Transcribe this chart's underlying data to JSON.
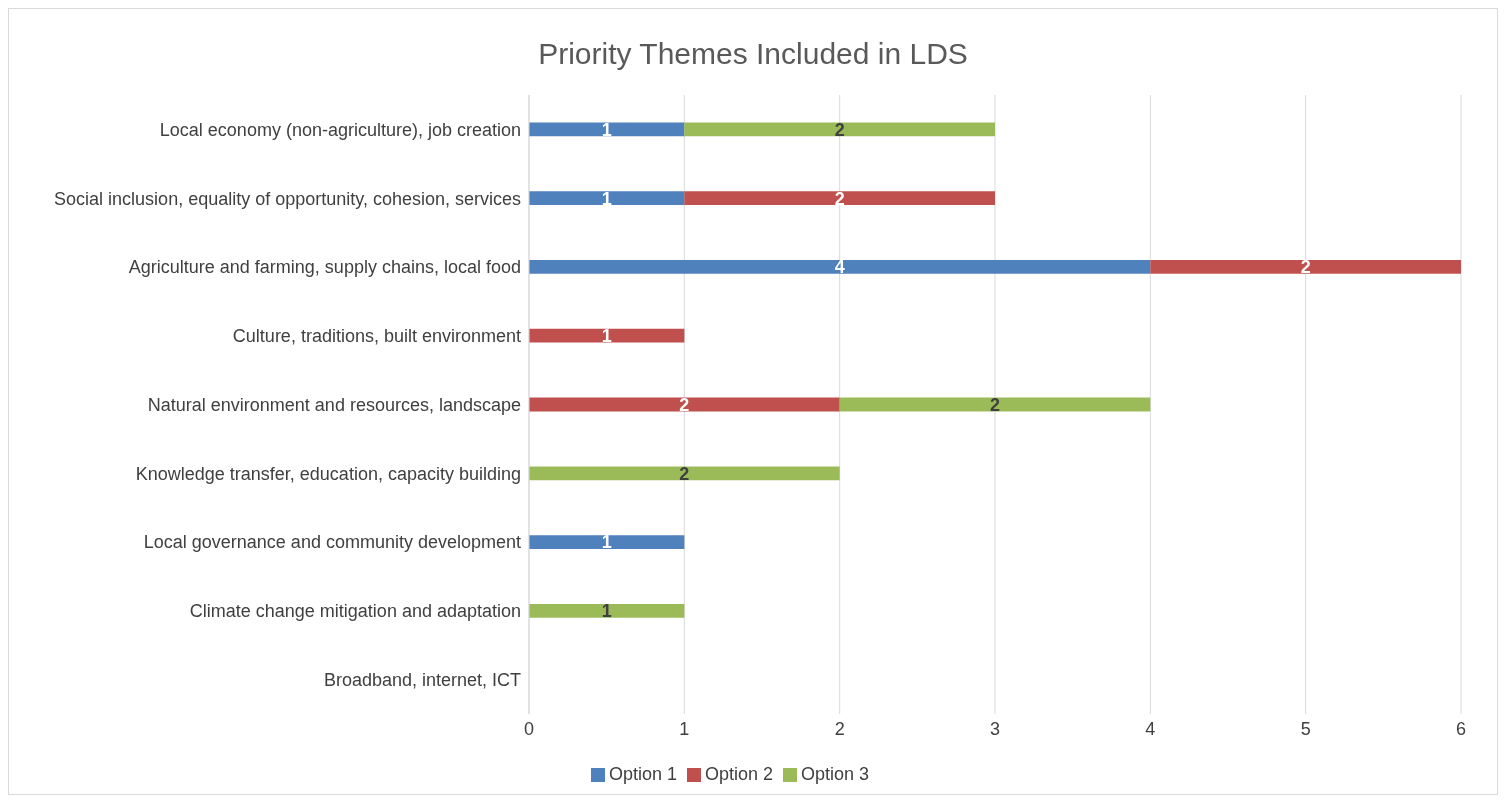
{
  "chart_data": {
    "type": "bar",
    "title": "Priority Themes Included in LDS",
    "orientation": "horizontal",
    "stacked": true,
    "categories": [
      "Local economy (non-agriculture), job creation",
      "Social inclusion, equality of opportunity, cohesion, services",
      "Agriculture and farming, supply chains, local food",
      "Culture, traditions, built environment",
      "Natural environment and resources, landscape",
      "Knowledge transfer, education, capacity building",
      "Local governance and community development",
      "Climate change mitigation and adaptation",
      "Broadband, internet, ICT"
    ],
    "series": [
      {
        "name": "Option 1",
        "color": "#4f81bd",
        "values": [
          1,
          1,
          4,
          null,
          null,
          null,
          1,
          null,
          null
        ]
      },
      {
        "name": "Option 2",
        "color": "#c0504d",
        "values": [
          null,
          2,
          2,
          1,
          2,
          null,
          null,
          null,
          null
        ]
      },
      {
        "name": "Option 3",
        "color": "#9bbb59",
        "values": [
          2,
          null,
          null,
          null,
          2,
          2,
          null,
          1,
          null
        ]
      }
    ],
    "xlim": [
      0,
      6
    ],
    "xticks": [
      0,
      1,
      2,
      3,
      4,
      5,
      6
    ],
    "grid": "x",
    "legend": "bottom",
    "data_labels": true
  }
}
